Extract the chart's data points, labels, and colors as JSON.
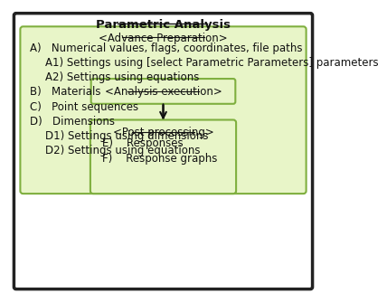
{
  "title": "Parametric Analysis",
  "outer_box_color": "#ffffff",
  "outer_box_edge": "#222222",
  "green_fill": "#e8f5c8",
  "green_edge": "#7faf3f",
  "advance_title": "<Advance Preparation>",
  "advance_lines": [
    {
      "indent": 0,
      "text": "A)   Numerical values, flags, coordinates, file paths"
    },
    {
      "indent": 1,
      "text": "A1) Settings using [select Parametric Parameters] parameters"
    },
    {
      "indent": 1,
      "text": "A2) Settings using equations"
    },
    {
      "indent": 0,
      "text": "B)   Materials"
    },
    {
      "indent": 0,
      "text": "C)   Point sequences"
    },
    {
      "indent": 0,
      "text": "D)   Dimensions"
    },
    {
      "indent": 1,
      "text": "D1) Settings using dimensions"
    },
    {
      "indent": 1,
      "text": "D2) Settings using equations"
    }
  ],
  "analysis_title": "<Analysis execution>",
  "post_title": "<Post processing>",
  "post_lines": [
    {
      "indent": 0,
      "text": "E)    Responses"
    },
    {
      "indent": 0,
      "text": "F)    Response graphs"
    }
  ],
  "font_size_title": 9.5,
  "font_size_main": 8.5,
  "font_size_box_title": 8.5
}
